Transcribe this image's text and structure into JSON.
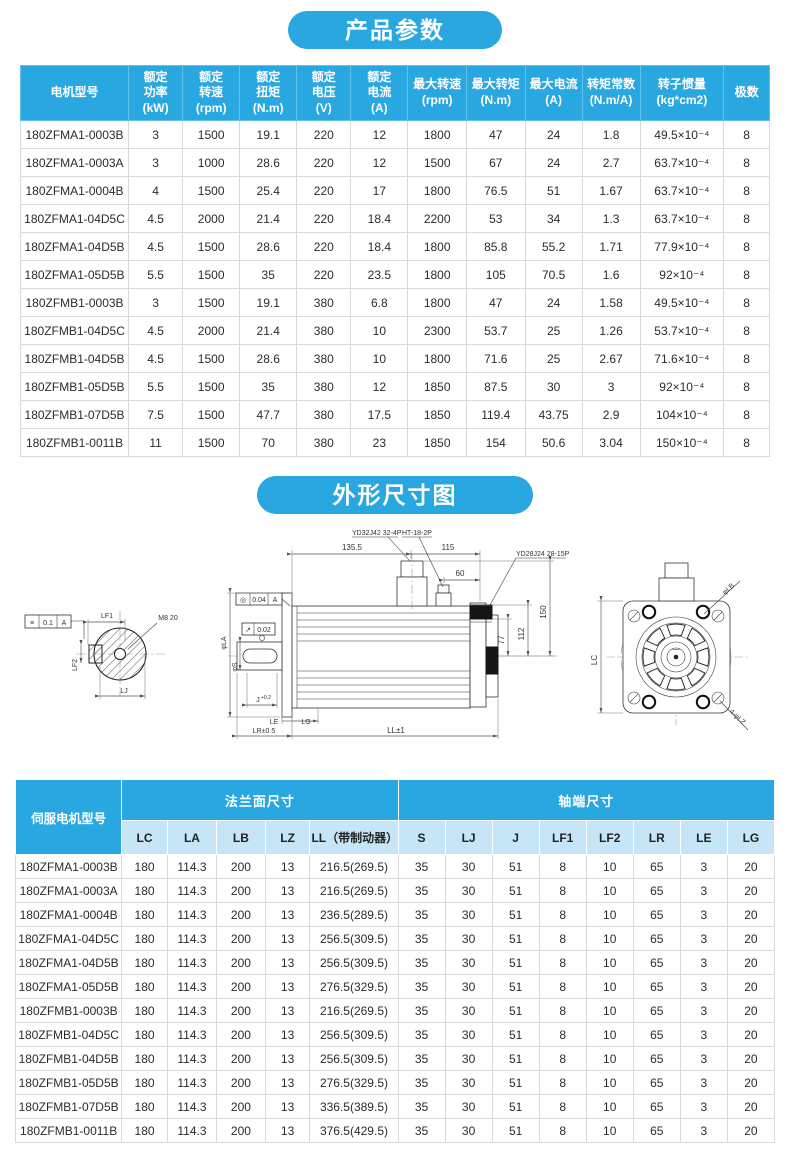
{
  "sections": {
    "params_title": "产品参数",
    "dims_title": "外形尺寸图"
  },
  "colors": {
    "accent_blue": "#29a7e1",
    "subheader_blue": "#c6e6f8",
    "cell_border": "#d9d9d9"
  },
  "params_table": {
    "headers": [
      "电机型号",
      "额定\n功率\n(kW)",
      "额定\n转速\n(rpm)",
      "额定\n扭矩\n(N.m)",
      "额定\n电压\n(V)",
      "额定\n电流\n(A)",
      "最大转速\n(rpm)",
      "最大转矩\n(N.m)",
      "最大电流\n(A)",
      "转矩常数\n(N.m/A)",
      "转子惯量\n(kg*cm2)",
      "极数"
    ],
    "rows": [
      [
        "180ZFMA1-0003B",
        "3",
        "1500",
        "19.1",
        "220",
        "12",
        "1800",
        "47",
        "24",
        "1.8",
        "49.5×10⁻⁴",
        "8"
      ],
      [
        "180ZFMA1-0003A",
        "3",
        "1000",
        "28.6",
        "220",
        "12",
        "1500",
        "67",
        "24",
        "2.7",
        "63.7×10⁻⁴",
        "8"
      ],
      [
        "180ZFMA1-0004B",
        "4",
        "1500",
        "25.4",
        "220",
        "17",
        "1800",
        "76.5",
        "51",
        "1.67",
        "63.7×10⁻⁴",
        "8"
      ],
      [
        "180ZFMA1-04D5C",
        "4.5",
        "2000",
        "21.4",
        "220",
        "18.4",
        "2200",
        "53",
        "34",
        "1.3",
        "63.7×10⁻⁴",
        "8"
      ],
      [
        "180ZFMA1-04D5B",
        "4.5",
        "1500",
        "28.6",
        "220",
        "18.4",
        "1800",
        "85.8",
        "55.2",
        "1.71",
        "77.9×10⁻⁴",
        "8"
      ],
      [
        "180ZFMA1-05D5B",
        "5.5",
        "1500",
        "35",
        "220",
        "23.5",
        "1800",
        "105",
        "70.5",
        "1.6",
        "92×10⁻⁴",
        "8"
      ],
      [
        "180ZFMB1-0003B",
        "3",
        "1500",
        "19.1",
        "380",
        "6.8",
        "1800",
        "47",
        "24",
        "1.58",
        "49.5×10⁻⁴",
        "8"
      ],
      [
        "180ZFMB1-04D5C",
        "4.5",
        "2000",
        "21.4",
        "380",
        "10",
        "2300",
        "53.7",
        "25",
        "1.26",
        "53.7×10⁻⁴",
        "8"
      ],
      [
        "180ZFMB1-04D5B",
        "4.5",
        "1500",
        "28.6",
        "380",
        "10",
        "1800",
        "71.6",
        "25",
        "2.67",
        "71.6×10⁻⁴",
        "8"
      ],
      [
        "180ZFMB1-05D5B",
        "5.5",
        "1500",
        "35",
        "380",
        "12",
        "1850",
        "87.5",
        "30",
        "3",
        "92×10⁻⁴",
        "8"
      ],
      [
        "180ZFMB1-07D5B",
        "7.5",
        "1500",
        "47.7",
        "380",
        "17.5",
        "1850",
        "119.4",
        "43.75",
        "2.9",
        "104×10⁻⁴",
        "8"
      ],
      [
        "180ZFMB1-0011B",
        "11",
        "1500",
        "70",
        "380",
        "23",
        "1850",
        "154",
        "50.6",
        "3.04",
        "150×10⁻⁴",
        "8"
      ]
    ]
  },
  "dims_table": {
    "model_header": "伺服电机型号",
    "group1": "法兰面尺寸",
    "group2": "轴端尺寸",
    "sub_headers": [
      "LC",
      "LA",
      "LB",
      "LZ",
      "LL（带制动器）",
      "S",
      "LJ",
      "J",
      "LF1",
      "LF2",
      "LR",
      "LE",
      "LG"
    ],
    "rows": [
      [
        "180ZFMA1-0003B",
        "180",
        "114.3",
        "200",
        "13",
        "216.5(269.5)",
        "35",
        "30",
        "51",
        "8",
        "10",
        "65",
        "3",
        "20"
      ],
      [
        "180ZFMA1-0003A",
        "180",
        "114.3",
        "200",
        "13",
        "216.5(269.5)",
        "35",
        "30",
        "51",
        "8",
        "10",
        "65",
        "3",
        "20"
      ],
      [
        "180ZFMA1-0004B",
        "180",
        "114.3",
        "200",
        "13",
        "236.5(289.5)",
        "35",
        "30",
        "51",
        "8",
        "10",
        "65",
        "3",
        "20"
      ],
      [
        "180ZFMA1-04D5C",
        "180",
        "114.3",
        "200",
        "13",
        "256.5(309.5)",
        "35",
        "30",
        "51",
        "8",
        "10",
        "65",
        "3",
        "20"
      ],
      [
        "180ZFMA1-04D5B",
        "180",
        "114.3",
        "200",
        "13",
        "256.5(309.5)",
        "35",
        "30",
        "51",
        "8",
        "10",
        "65",
        "3",
        "20"
      ],
      [
        "180ZFMA1-05D5B",
        "180",
        "114.3",
        "200",
        "13",
        "276.5(329.5)",
        "35",
        "30",
        "51",
        "8",
        "10",
        "65",
        "3",
        "20"
      ],
      [
        "180ZFMB1-0003B",
        "180",
        "114.3",
        "200",
        "13",
        "216.5(269.5)",
        "35",
        "30",
        "51",
        "8",
        "10",
        "65",
        "3",
        "20"
      ],
      [
        "180ZFMB1-04D5C",
        "180",
        "114.3",
        "200",
        "13",
        "256.5(309.5)",
        "35",
        "30",
        "51",
        "8",
        "10",
        "65",
        "3",
        "20"
      ],
      [
        "180ZFMB1-04D5B",
        "180",
        "114.3",
        "200",
        "13",
        "256.5(309.5)",
        "35",
        "30",
        "51",
        "8",
        "10",
        "65",
        "3",
        "20"
      ],
      [
        "180ZFMB1-05D5B",
        "180",
        "114.3",
        "200",
        "13",
        "276.5(329.5)",
        "35",
        "30",
        "51",
        "8",
        "10",
        "65",
        "3",
        "20"
      ],
      [
        "180ZFMB1-07D5B",
        "180",
        "114.3",
        "200",
        "13",
        "336.5(389.5)",
        "35",
        "30",
        "51",
        "8",
        "10",
        "65",
        "3",
        "20"
      ],
      [
        "180ZFMB1-0011B",
        "180",
        "114.3",
        "200",
        "13",
        "376.5(429.5)",
        "35",
        "30",
        "51",
        "8",
        "10",
        "65",
        "3",
        "20"
      ]
    ]
  },
  "drawing": {
    "shaft_view": {
      "sym_tol": "≡",
      "sym_val": "0.1",
      "sym_datum": "A",
      "lf1": "LF1",
      "m8": "M8 20",
      "lf2": "LF2",
      "lj": "LJ"
    },
    "side_view": {
      "conc_sym": "◎",
      "conc_val": "0.04",
      "conc_datum": "A",
      "runout_sym": "↗",
      "runout_val": "0.02",
      "conn_top": "YD32J42 32-4P",
      "conn_top2": "HT-18-2P",
      "conn_rear": "YD28J24 28-15P",
      "d135": "135.5",
      "d115": "115",
      "d60": "60",
      "d77": "77",
      "d112": "112",
      "d150": "150",
      "phi_la": "φLA",
      "phi_s": "φS",
      "j": "J",
      "j_sup": "+0.2",
      "le": "LE",
      "lg": "LG",
      "lr": "LR±0.5",
      "ll": "LL±1"
    },
    "front_view": {
      "lc": "LC",
      "phi_lb": "φLB",
      "lz": "4-φLZ"
    }
  }
}
